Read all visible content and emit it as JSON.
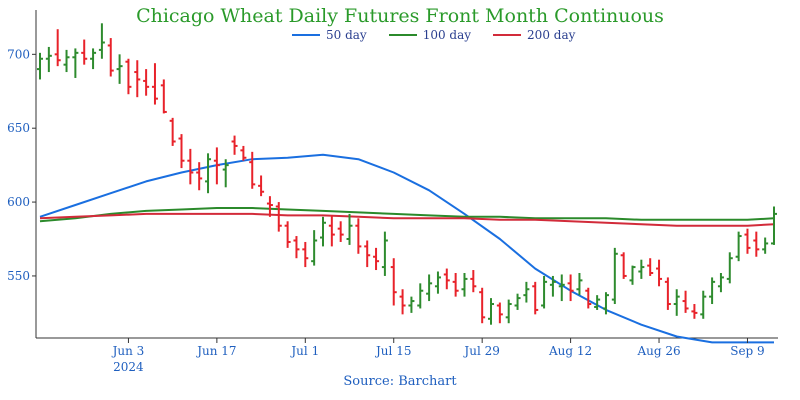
{
  "chart_data": {
    "type": "ohlc",
    "title": "Chicago Wheat Daily Futures Front Month Continuous",
    "source": "Source: Barchart",
    "ylim": [
      508,
      730
    ],
    "y_ticks": [
      550,
      600,
      650,
      700
    ],
    "x_ticks": [
      {
        "label": "Jun 3",
        "sub": "2024",
        "index": 10
      },
      {
        "label": "Jun 17",
        "index": 20
      },
      {
        "label": "Jul 1",
        "index": 30
      },
      {
        "label": "Jul 15",
        "index": 40
      },
      {
        "label": "Jul 29",
        "index": 50
      },
      {
        "label": "Aug 12",
        "index": 60
      },
      {
        "label": "Aug 26",
        "index": 70
      },
      {
        "label": "Sep 9",
        "index": 80
      }
    ],
    "colors": {
      "up": "#2e8b2e",
      "down": "#e8222a",
      "ma50": "#1a6fe0",
      "ma100": "#2b8a2b",
      "ma200": "#d22b3a",
      "title": "#2a9a2a",
      "axis": "#333333"
    },
    "legend": [
      {
        "name": "50 day",
        "color": "#1a6fe0"
      },
      {
        "name": "100 day",
        "color": "#2b8a2b"
      },
      {
        "name": "200 day",
        "color": "#d22b3a"
      }
    ],
    "n_bars": 84,
    "bars": [
      {
        "o": 690,
        "h": 701,
        "l": 683,
        "c": 697
      },
      {
        "o": 697,
        "h": 705,
        "l": 688,
        "c": 699
      },
      {
        "o": 700,
        "h": 717,
        "l": 692,
        "c": 696
      },
      {
        "o": 693,
        "h": 703,
        "l": 688,
        "c": 698
      },
      {
        "o": 698,
        "h": 704,
        "l": 684,
        "c": 701
      },
      {
        "o": 701,
        "h": 710,
        "l": 693,
        "c": 697
      },
      {
        "o": 697,
        "h": 704,
        "l": 690,
        "c": 701
      },
      {
        "o": 703,
        "h": 721,
        "l": 697,
        "c": 708
      },
      {
        "o": 706,
        "h": 711,
        "l": 685,
        "c": 689
      },
      {
        "o": 690,
        "h": 700,
        "l": 680,
        "c": 692
      },
      {
        "o": 695,
        "h": 697,
        "l": 673,
        "c": 678
      },
      {
        "o": 688,
        "h": 696,
        "l": 671,
        "c": 683
      },
      {
        "o": 682,
        "h": 690,
        "l": 672,
        "c": 678
      },
      {
        "o": 678,
        "h": 694,
        "l": 666,
        "c": 670
      },
      {
        "o": 679,
        "h": 683,
        "l": 660,
        "c": 661
      },
      {
        "o": 655,
        "h": 657,
        "l": 638,
        "c": 641
      },
      {
        "o": 643,
        "h": 646,
        "l": 623,
        "c": 628
      },
      {
        "o": 628,
        "h": 636,
        "l": 612,
        "c": 620
      },
      {
        "o": 620,
        "h": 627,
        "l": 608,
        "c": 616
      },
      {
        "o": 614,
        "h": 633,
        "l": 606,
        "c": 629
      },
      {
        "o": 628,
        "h": 637,
        "l": 612,
        "c": 625
      },
      {
        "o": 622,
        "h": 629,
        "l": 610,
        "c": 625
      },
      {
        "o": 641,
        "h": 645,
        "l": 632,
        "c": 638
      },
      {
        "o": 635,
        "h": 638,
        "l": 628,
        "c": 630
      },
      {
        "o": 627,
        "h": 634,
        "l": 609,
        "c": 612
      },
      {
        "o": 611,
        "h": 618,
        "l": 604,
        "c": 607
      },
      {
        "o": 599,
        "h": 604,
        "l": 590,
        "c": 598
      },
      {
        "o": 597,
        "h": 600,
        "l": 580,
        "c": 584
      },
      {
        "o": 584,
        "h": 587,
        "l": 569,
        "c": 573
      },
      {
        "o": 574,
        "h": 577,
        "l": 562,
        "c": 568
      },
      {
        "o": 568,
        "h": 573,
        "l": 556,
        "c": 562
      },
      {
        "o": 560,
        "h": 581,
        "l": 557,
        "c": 574
      },
      {
        "o": 576,
        "h": 590,
        "l": 570,
        "c": 586
      },
      {
        "o": 584,
        "h": 591,
        "l": 570,
        "c": 578
      },
      {
        "o": 582,
        "h": 587,
        "l": 573,
        "c": 578
      },
      {
        "o": 575,
        "h": 592,
        "l": 571,
        "c": 584
      },
      {
        "o": 584,
        "h": 589,
        "l": 565,
        "c": 570
      },
      {
        "o": 570,
        "h": 574,
        "l": 556,
        "c": 564
      },
      {
        "o": 563,
        "h": 569,
        "l": 554,
        "c": 560
      },
      {
        "o": 556,
        "h": 580,
        "l": 550,
        "c": 574
      },
      {
        "o": 556,
        "h": 562,
        "l": 530,
        "c": 539
      },
      {
        "o": 536,
        "h": 541,
        "l": 524,
        "c": 530
      },
      {
        "o": 530,
        "h": 536,
        "l": 525,
        "c": 533
      },
      {
        "o": 530,
        "h": 545,
        "l": 528,
        "c": 540
      },
      {
        "o": 538,
        "h": 551,
        "l": 533,
        "c": 545
      },
      {
        "o": 543,
        "h": 553,
        "l": 538,
        "c": 549
      },
      {
        "o": 551,
        "h": 555,
        "l": 541,
        "c": 547
      },
      {
        "o": 546,
        "h": 552,
        "l": 536,
        "c": 540
      },
      {
        "o": 541,
        "h": 552,
        "l": 536,
        "c": 548
      },
      {
        "o": 548,
        "h": 554,
        "l": 539,
        "c": 543
      },
      {
        "o": 539,
        "h": 542,
        "l": 518,
        "c": 522
      },
      {
        "o": 521,
        "h": 535,
        "l": 517,
        "c": 531
      },
      {
        "o": 530,
        "h": 532,
        "l": 518,
        "c": 524
      },
      {
        "o": 522,
        "h": 534,
        "l": 518,
        "c": 531
      },
      {
        "o": 530,
        "h": 538,
        "l": 527,
        "c": 535
      },
      {
        "o": 537,
        "h": 546,
        "l": 532,
        "c": 541
      },
      {
        "o": 543,
        "h": 546,
        "l": 524,
        "c": 527
      },
      {
        "o": 530,
        "h": 550,
        "l": 528,
        "c": 546
      },
      {
        "o": 544,
        "h": 550,
        "l": 536,
        "c": 546
      },
      {
        "o": 543,
        "h": 551,
        "l": 533,
        "c": 544
      },
      {
        "o": 545,
        "h": 551,
        "l": 533,
        "c": 540
      },
      {
        "o": 541,
        "h": 552,
        "l": 537,
        "c": 547
      },
      {
        "o": 540,
        "h": 542,
        "l": 528,
        "c": 531
      },
      {
        "o": 529,
        "h": 537,
        "l": 527,
        "c": 534
      },
      {
        "o": 528,
        "h": 539,
        "l": 524,
        "c": 537
      },
      {
        "o": 534,
        "h": 569,
        "l": 531,
        "c": 565
      },
      {
        "o": 564,
        "h": 566,
        "l": 548,
        "c": 550
      },
      {
        "o": 547,
        "h": 557,
        "l": 544,
        "c": 556
      },
      {
        "o": 553,
        "h": 561,
        "l": 548,
        "c": 556
      },
      {
        "o": 557,
        "h": 562,
        "l": 550,
        "c": 552
      },
      {
        "o": 555,
        "h": 561,
        "l": 543,
        "c": 548
      },
      {
        "o": 546,
        "h": 549,
        "l": 527,
        "c": 531
      },
      {
        "o": 531,
        "h": 541,
        "l": 523,
        "c": 536
      },
      {
        "o": 533,
        "h": 540,
        "l": 525,
        "c": 528
      },
      {
        "o": 526,
        "h": 531,
        "l": 521,
        "c": 525
      },
      {
        "o": 524,
        "h": 540,
        "l": 521,
        "c": 536
      },
      {
        "o": 536,
        "h": 549,
        "l": 531,
        "c": 546
      },
      {
        "o": 543,
        "h": 552,
        "l": 539,
        "c": 549
      },
      {
        "o": 548,
        "h": 566,
        "l": 545,
        "c": 562
      },
      {
        "o": 563,
        "h": 580,
        "l": 560,
        "c": 577
      },
      {
        "o": 578,
        "h": 582,
        "l": 565,
        "c": 569
      },
      {
        "o": 574,
        "h": 580,
        "l": 563,
        "c": 568
      },
      {
        "o": 568,
        "h": 576,
        "l": 565,
        "c": 572
      },
      {
        "o": 572,
        "h": 597,
        "l": 571,
        "c": 592
      }
    ],
    "series": [
      {
        "name": "50 day",
        "x": [
          0,
          4,
          8,
          12,
          16,
          20,
          24,
          28,
          32,
          36,
          40,
          44,
          48,
          52,
          56,
          60,
          64,
          68,
          72,
          76,
          80,
          83
        ],
        "values": [
          590,
          598,
          606,
          614,
          620,
          625,
          629,
          630,
          632,
          629,
          620,
          608,
          592,
          575,
          555,
          540,
          527,
          517,
          509,
          505,
          505,
          505
        ]
      },
      {
        "name": "100 day",
        "x": [
          0,
          4,
          8,
          12,
          16,
          20,
          24,
          28,
          32,
          36,
          40,
          44,
          48,
          52,
          56,
          60,
          64,
          68,
          72,
          76,
          80,
          83
        ],
        "values": [
          587,
          589,
          592,
          594,
          595,
          596,
          596,
          595,
          594,
          593,
          592,
          591,
          590,
          590,
          589,
          589,
          589,
          588,
          588,
          588,
          588,
          589
        ]
      },
      {
        "name": "200 day",
        "x": [
          0,
          4,
          8,
          12,
          16,
          20,
          24,
          28,
          32,
          36,
          40,
          44,
          48,
          52,
          56,
          60,
          64,
          68,
          72,
          76,
          80,
          83
        ],
        "values": [
          589,
          590,
          591,
          592,
          592,
          592,
          592,
          591,
          591,
          590,
          589,
          589,
          589,
          588,
          588,
          587,
          586,
          585,
          584,
          584,
          584,
          585
        ]
      }
    ]
  }
}
